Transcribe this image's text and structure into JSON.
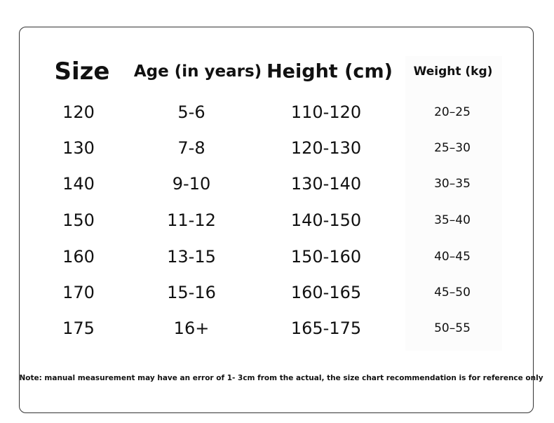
{
  "table": {
    "headers": [
      "Size",
      "Age (in years)",
      "Height (cm)",
      "Weight (kg)"
    ],
    "rows": [
      [
        "120",
        "5-6",
        "110-120",
        "20–25"
      ],
      [
        "130",
        "7-8",
        "120-130",
        "25–30"
      ],
      [
        "140",
        "9-10",
        "130-140",
        "30–35"
      ],
      [
        "150",
        "11-12",
        "140-150",
        "35–40"
      ],
      [
        "160",
        "13-15",
        "150-160",
        "40–45"
      ],
      [
        "170",
        "15-16",
        "160-165",
        "45–50"
      ],
      [
        "175",
        "16+",
        "165-175",
        "50–55"
      ]
    ]
  },
  "note": "Note: manual measurement may have an error of 1- 3cm from the actual, the size chart recommendation is for reference only"
}
